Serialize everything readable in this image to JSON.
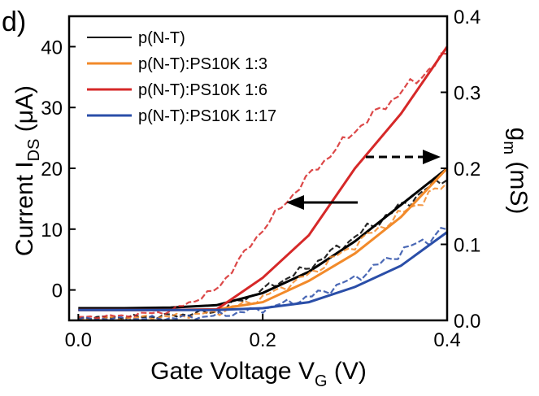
{
  "chart_data": {
    "type": "line",
    "panel_label": "d)",
    "title": "",
    "xlabel": {
      "main": "Gate Voltage V",
      "sub": "G",
      "unit": " (V)"
    },
    "ylabel_left": {
      "main": "Current I",
      "sub": "DS",
      "unit": " (μA)"
    },
    "ylabel_right": {
      "main": "g",
      "sub": "m",
      "unit": " (mS)"
    },
    "xlim": [
      -0.01,
      0.4
    ],
    "ylim_left": [
      -5,
      45
    ],
    "ylim_right": [
      0.0,
      0.4
    ],
    "x_ticks": [
      0.0,
      0.2,
      0.4
    ],
    "x_tick_labels": [
      "0.0",
      "0.2",
      "0.4"
    ],
    "y_left_ticks": [
      0,
      10,
      20,
      30,
      40
    ],
    "y_left_tick_labels": [
      "0",
      "10",
      "20",
      "30",
      "40"
    ],
    "y_right_ticks": [
      0.0,
      0.1,
      0.2,
      0.3,
      0.4
    ],
    "y_right_tick_labels": [
      "0.0",
      "0.1",
      "0.2",
      "0.3",
      "0.4"
    ],
    "legend_position": "top-left",
    "x": [
      0.0,
      0.05,
      0.1,
      0.15,
      0.2,
      0.25,
      0.3,
      0.35,
      0.4
    ],
    "series": [
      {
        "name": "p(N-T)",
        "color": "#000000",
        "current": [
          -3.0,
          -3.0,
          -2.9,
          -2.5,
          -0.5,
          3.0,
          8.0,
          14.0,
          20.0
        ],
        "gm": [
          0.003,
          0.004,
          0.006,
          0.012,
          0.04,
          0.07,
          0.11,
          0.15,
          0.19
        ]
      },
      {
        "name": "p(N-T):PS10K 1:3",
        "color": "#f28a2a",
        "current": [
          -3.3,
          -3.3,
          -3.3,
          -3.2,
          -2.0,
          1.5,
          6.0,
          12.0,
          20.0
        ],
        "gm": [
          0.002,
          0.003,
          0.005,
          0.01,
          0.03,
          0.06,
          0.1,
          0.14,
          0.18
        ]
      },
      {
        "name": "p(N-T):PS10K 1:6",
        "color": "#d62828",
        "current": [
          -3.3,
          -3.3,
          -3.3,
          -3.2,
          2.0,
          9.0,
          20.0,
          29.0,
          40.0
        ],
        "gm": [
          0.004,
          0.006,
          0.012,
          0.04,
          0.12,
          0.19,
          0.25,
          0.3,
          0.35
        ]
      },
      {
        "name": "p(N-T):PS10K 1:17",
        "color": "#2a4ea8",
        "current": [
          -3.3,
          -3.3,
          -3.3,
          -3.3,
          -3.0,
          -2.0,
          0.5,
          4.0,
          9.5
        ],
        "gm": [
          0.002,
          0.002,
          0.003,
          0.006,
          0.015,
          0.03,
          0.055,
          0.09,
          0.12
        ]
      }
    ],
    "annotations": [
      {
        "label": "solid-arrow-left",
        "meaning": "solid curves read on left axis"
      },
      {
        "label": "dashed-arrow-right",
        "meaning": "dashed curves read on right axis"
      }
    ]
  }
}
